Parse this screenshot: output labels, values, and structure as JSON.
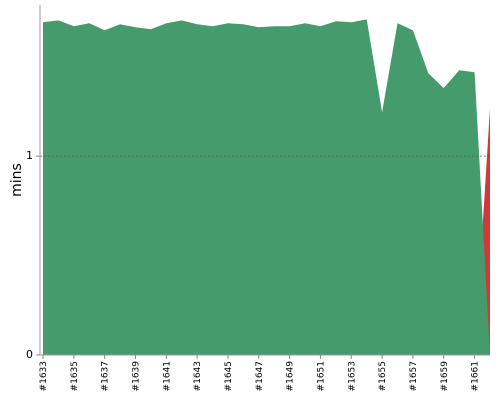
{
  "chart_data": {
    "type": "area",
    "y_label": "mins",
    "categories": [
      "#1633",
      null,
      "#1635",
      null,
      "#1637",
      null,
      "#1639",
      null,
      "#1641",
      null,
      "#1643",
      null,
      "#1645",
      null,
      "#1647",
      null,
      "#1649",
      null,
      "#1651",
      null,
      "#1653",
      null,
      "#1655",
      null,
      "#1657",
      null,
      "#1659",
      null,
      "#1661",
      null
    ],
    "series": [
      {
        "color": "#459b6c",
        "values": [
          1.673,
          1.683,
          1.653,
          1.668,
          1.633,
          1.663,
          1.648,
          1.638,
          1.668,
          1.683,
          1.663,
          1.653,
          1.668,
          1.663,
          1.648,
          1.653,
          1.653,
          1.668,
          1.653,
          1.678,
          1.673,
          1.688,
          1.221,
          1.668,
          1.633,
          1.417,
          1.342,
          1.432,
          1.422,
          0
        ]
      },
      {
        "color": "#d1383a",
        "values": [
          0,
          0,
          0,
          0,
          0,
          0,
          0,
          0,
          0,
          0,
          0,
          0,
          0,
          0,
          0,
          0,
          0,
          0,
          0,
          0,
          0,
          0,
          0,
          0,
          0,
          0,
          0,
          0,
          0,
          1.24
        ]
      }
    ],
    "ylim": [
      0,
      1.76
    ],
    "yticks": [
      0,
      1
    ],
    "grid": true
  }
}
